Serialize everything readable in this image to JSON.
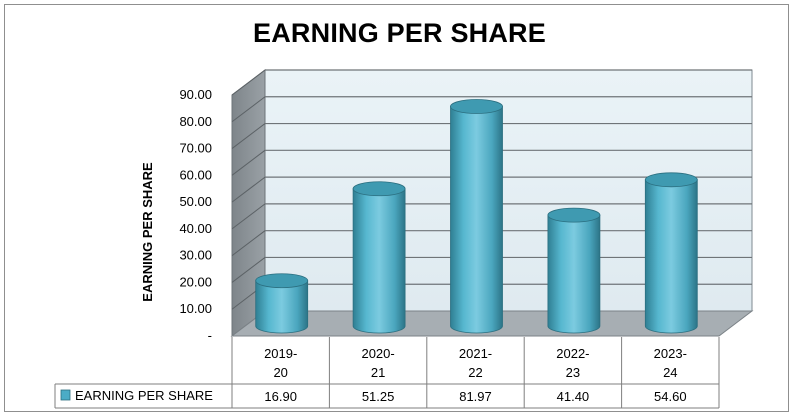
{
  "chart_data": {
    "type": "bar",
    "title": "EARNING PER SHARE",
    "ylabel": "EARNING PER SHARE",
    "xlabel": "",
    "categories": [
      [
        "2019-",
        "20"
      ],
      [
        "2020-",
        "21"
      ],
      [
        "2021-",
        "22"
      ],
      [
        "2022-",
        "23"
      ],
      [
        "2023-",
        "24"
      ]
    ],
    "series": [
      {
        "name": "EARNING PER SHARE",
        "values": [
          16.9,
          51.25,
          81.97,
          41.4,
          54.6
        ]
      }
    ],
    "value_labels": [
      "16.90",
      "51.25",
      "81.97",
      "41.40",
      "54.60"
    ],
    "yticks": [
      "-",
      "10.00",
      "20.00",
      "30.00",
      "40.00",
      "50.00",
      "60.00",
      "70.00",
      "80.00",
      "90.00"
    ],
    "ylim": [
      0,
      90
    ],
    "bar_shape": "cylinder",
    "grid": true,
    "legend": "data table row",
    "colors": {
      "bar": "#4bacc6",
      "wall": "#e9f2f7",
      "floor": "#a7aeb3",
      "side_wall": "#8a9197"
    }
  }
}
